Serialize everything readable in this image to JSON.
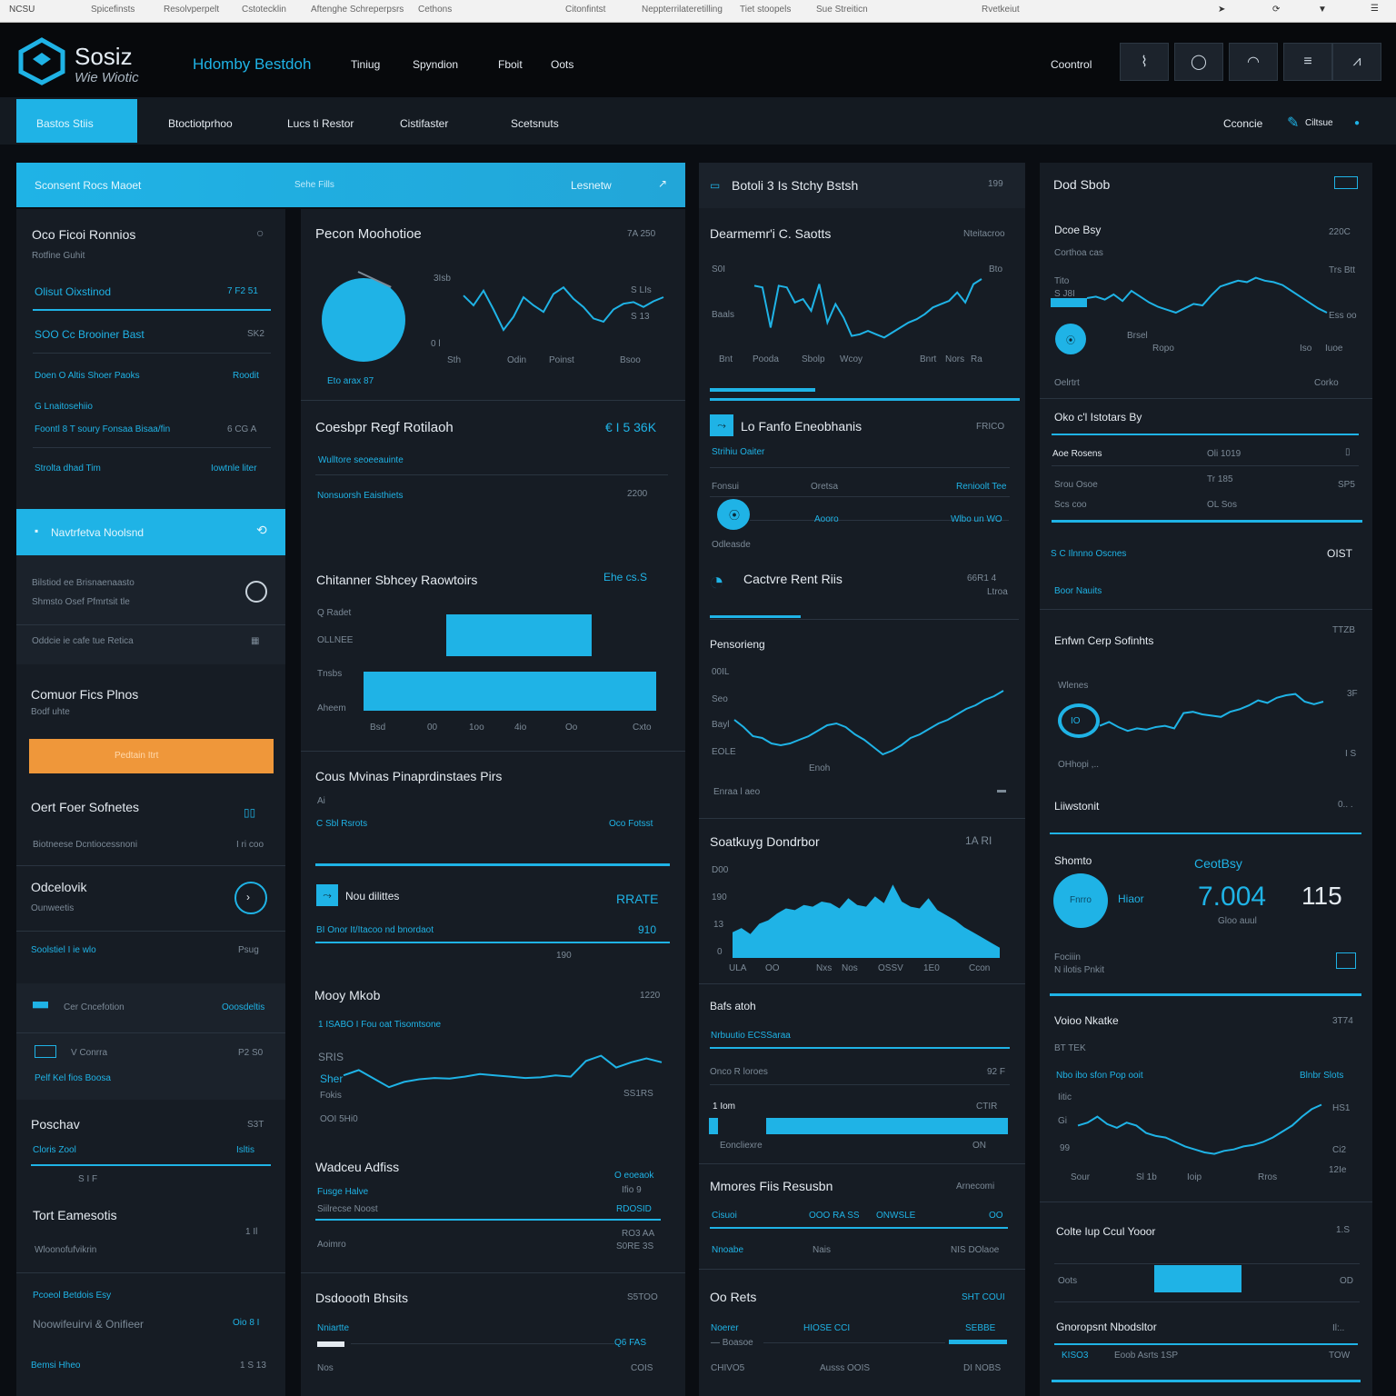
{
  "browser": {
    "items": [
      "NCSU",
      "Spicefinsts",
      "Resolvperpelt",
      "Cstotecklin",
      "Aftenghe Schreperpsrs",
      "Cethons",
      "Citonfintst",
      "Neppterrilateretilling",
      "Tiet stoopels",
      "Sue Streiticn",
      "Rvetkeiut"
    ],
    "icons": [
      "cursor-icon",
      "refresh-icon",
      "bookmark-icon",
      "menu-icon"
    ]
  },
  "header": {
    "logo_line1": "Sosiz",
    "logo_line2": "Wie Wiotic",
    "title": "Hdomby Bestdoh",
    "nav": [
      "Tiniug",
      "Spyndion",
      "Fboit",
      "Oots"
    ],
    "control_label": "Coontrol",
    "actions": [
      "chart-icon",
      "circle-icon",
      "wifi-icon",
      "list-icon",
      "pulse-icon"
    ]
  },
  "tabs": {
    "items": [
      "Bastos Stiis",
      "Btoctiotprhoo",
      "Lucs ti Restor",
      "Cistifaster",
      "Scetsnuts"
    ],
    "right_label": "Cconcie",
    "right_link": "Ciltsue"
  },
  "banner": {
    "left": "Sconsent Rocs Maoet",
    "mid": "Sehe Fills",
    "right": "Lesnetw"
  },
  "left": {
    "header_title": "Oco Ficoi Ronnios",
    "header_sub": "Rotfine Guhit",
    "rows": [
      {
        "l": "Olisut Oixstinod",
        "r": "7 F2 51"
      },
      {
        "l": "SOO Cc Brooiner Bast",
        "r": "SK2"
      },
      {
        "l": "Doen O Altis Shoer Paoks",
        "r": "Roodit"
      },
      {
        "l": "G Lnaitosehiio",
        "r": ""
      },
      {
        "l": "Foontl 8 T soury Fonsaa Bisaa/fin",
        "r": "6 CG A"
      },
      {
        "l": "Strolta dhad Tim",
        "r": "Iowtnle liter"
      }
    ],
    "band_title": "Navtrfetva Noolsnd",
    "info1": "Bilstiod ee Brisnaenaasto",
    "info2": "Shmsto Osef Pfmrtsit tle",
    "info3": "Oddcie ie cafe tue Retica",
    "promo_title": "Comuor Fics Plnos",
    "promo_sub": "Bodf uhte",
    "promo_btn": "Pedtain Itrt",
    "sched_title": "Oert Foer Sofnetes",
    "sched_row": "Biotneese Dcntiocessnoni",
    "sched_val": "I ri coo",
    "odc_title": "Odcelovik",
    "odc_sub": "Ounweetis",
    "odc_link": "Soolstiel I ie wlo",
    "odc_val": "Psug",
    "tbl_head": "Cer Cncefotion",
    "tbl_head_r": "Ooosdeltis",
    "tbl_row1": "V Conrra",
    "tbl_row1_r": "P2 S0",
    "tbl_row2": "Pelf Kel fios Boosa",
    "pos_title": "Poschav",
    "pos_val": "S3T",
    "pos_row": "Cloris Zool",
    "pos_row_r": "Isltis",
    "pos_sub": "S I F",
    "tot_title": "Tort Eamesotis",
    "tot_val": "1 Il",
    "tot_sub": "Wloonofufvikrin",
    "foot1": "Pcoeol Betdois Esy",
    "foot2": "Noowifeuirvi & Onifieer",
    "foot2_r": "Oio 8 I",
    "foot3": "Bemsi Hheo",
    "foot3_r": "1 S 13"
  },
  "col2": {
    "pie_title": "Pecon Moohotioe",
    "pie_val": "7A 250",
    "pie_caption": "Eto arax 87",
    "pie_axis": [
      "Sth",
      "Odin",
      "Poinst",
      "Bsoo"
    ],
    "pie_yt": [
      "3Isb",
      "S LIs",
      "S 13",
      "0 l"
    ],
    "chart1_y": [
      72,
      60,
      78,
      55,
      30,
      46,
      70,
      60,
      52,
      74,
      82,
      68,
      58,
      44,
      40,
      55,
      62,
      64,
      58,
      65,
      70
    ],
    "rev_title": "Coesbpr Regf Rotilaoh",
    "rev_val": "€ I 5 36K",
    "rev_row1": "Wulltore seoeeauinte",
    "rev_row2": "Nonsuorsh Eaisthiets",
    "rev_row2_r": "2200",
    "bar_title": "Chitanner Sbhcey Raowtoirs",
    "bar_val": "Ehe cs.S",
    "bar_cats": [
      "Q Radet",
      "OLLNEE",
      "Tnsbs",
      "Aheem"
    ],
    "bar_xt": [
      "Bsd",
      "00",
      "1oo",
      "4io",
      "Oo",
      "Cxto"
    ],
    "bar_vals": [
      78,
      100
    ],
    "maps_title": "Cous Mvinas Pinaprdinstaes Pirs",
    "maps_sub": "Ai",
    "maps_row": "C Sbl Rsrots",
    "maps_row_r": "Oco Fotsst",
    "nods_title": "Nou dilittes",
    "nods_val": "RRATE",
    "nods_row": "BI Onor It/Itacoo nd bnordaot",
    "nods_row_r": "910",
    "nods_x": "190",
    "mor_title": "Mooy Mkob",
    "mor_val": "1220",
    "mor_sub": "1 ISABO I Fou oat Tisomtsone",
    "mor_lbl1": "SRIS",
    "mor_lbl2": "Sher",
    "mor_lbl3": "Fokis",
    "mor_foot": "OOI 5Hi0",
    "mor_foot_r": "SS1RS",
    "chart2_y": [
      40,
      48,
      35,
      22,
      30,
      34,
      36,
      35,
      38,
      42,
      40,
      38,
      36,
      37,
      40,
      38,
      62,
      70,
      52,
      60,
      66,
      60
    ],
    "wal_title": "Wadceu Adfiss",
    "wal_r1": "O eoeaok",
    "wal_r2": "Ifio 9",
    "wal_row1": "Fusge Halve",
    "wal_row2": "Siilrecse Noost",
    "wal_row2_r": "RDOSID",
    "wal_row3": "Aoimro",
    "wal_row3_r": "RO3 AA",
    "wal_row3_r2": "S0RE 3S",
    "dst_title": "Dsdoooth Bhsits",
    "dst_val": "S5TOO",
    "dst_row": "Nniartte",
    "dst_row_r": "Q6 FAS",
    "dst_foot": "Nos",
    "dst_foot_r": "COIS"
  },
  "col3": {
    "head_title": "Botoli 3 Is Stchy Bstsh",
    "head_val": "199",
    "dem_title": "Dearmemr'i C. Saotts",
    "dem_val": "Nteitacroo",
    "dem_y": [
      "S0I",
      "Baals",
      "Bto",
      "Bnt"
    ],
    "dem_x": [
      "Pooda",
      "Sbolp",
      "Wcoy",
      "Bnrt",
      "Nors",
      "Ra"
    ],
    "chart_y": [
      80,
      78,
      30,
      80,
      78,
      60,
      64,
      50,
      82,
      36,
      58,
      42,
      20,
      22,
      26,
      22,
      18,
      24,
      30,
      36,
      40,
      46,
      54,
      58,
      62,
      72,
      60,
      82,
      88
    ],
    "enh_title": "Lo Fanfo Eneobhanis",
    "enh_val": "FRICO",
    "enh_sub": "Strihiu Oaiter",
    "enh_row": "Fonsui",
    "enh_row_m": "Oretsa",
    "enh_row_r": "Renioolt Tee",
    "enh_bar_lbl": "Aooro",
    "enh_bar_r": "Wlbo un WO",
    "enh_foot": "Odleasde",
    "cat_title": "Cactvre Rent Riis",
    "cat_val": "66R1 4",
    "cat_val2": "Ltroa",
    "pers_title": "Pensorieng",
    "pers_y": [
      "00IL",
      "Seo",
      "Bayl",
      "EOLE"
    ],
    "pers_x": "Enoh",
    "pers_foot": "Enraa l aeo",
    "chart2_y": [
      48,
      40,
      30,
      28,
      22,
      20,
      22,
      26,
      30,
      36,
      42,
      44,
      40,
      32,
      26,
      18,
      10,
      14,
      20,
      28,
      32,
      38,
      44,
      48,
      54,
      60,
      64,
      70,
      74,
      80
    ],
    "sd_title": "Soatkuyg Dondrbor",
    "sd_val": "1A RI",
    "sd_y": [
      "D00",
      "190",
      "13",
      "0"
    ],
    "sd_x": [
      "ULA",
      "OO",
      "Nxs",
      "Nos",
      "OSSV",
      "1E0",
      "Ccon"
    ],
    "area_y": [
      30,
      35,
      28,
      40,
      44,
      52,
      58,
      56,
      62,
      60,
      66,
      64,
      58,
      70,
      62,
      60,
      72,
      64,
      86,
      66,
      60,
      58,
      70,
      56,
      50,
      44,
      36,
      30,
      24,
      18,
      12
    ],
    "bs_title": "Bafs atoh",
    "bs_sub": "Nrbuutio ECSSaraa",
    "bs_row": "Onco R loroes",
    "bs_row_r": "92 F",
    "bs_bar_lbl": "1 Iom",
    "bs_bar_r": "CTIR",
    "bs_bar_foot": "Eoncliexre",
    "bs_bar_foot_r": "ON",
    "mr_title": "Mmores Fiis Resusbn",
    "mr_val": "Arnecomi",
    "mr_row1": "Cisuoi",
    "mr_row1_m": "OOO RA SS",
    "mr_row1_m2": "ONWSLE",
    "mr_row1_r": "OO",
    "mr_row2": "Nnoabe",
    "mr_row2_m": "Nais",
    "mr_row2_r": "NIS DOlaoe",
    "or_title": "Oo Rets",
    "or_val": "SHT COUI",
    "or_row1": "Noerer",
    "or_row1_m": "HIOSE CCI",
    "or_row1_r": "SEBBE",
    "or_row2": "— Boasoe",
    "or_foot": "CHIVO5",
    "or_foot_m": "Ausss OOIS",
    "or_foot_r": "DI NOBS"
  },
  "col4": {
    "head_title": "Dod Sbob",
    "c1_title": "Dcoe Bsy",
    "c1_val": "220C",
    "c1_sub": "Corthoa cas",
    "c1_y": [
      "Tito",
      "S  J8I",
      "Brsel"
    ],
    "c1_x": [
      "Ropo",
      "Iso",
      "Iuoe"
    ],
    "c1_yr": [
      "Trs Btt",
      "Ess oo"
    ],
    "c1_data": [
      50,
      52,
      48,
      55,
      46,
      60,
      52,
      44,
      38,
      34,
      30,
      36,
      42,
      40,
      54,
      66,
      70,
      74,
      72,
      78,
      74,
      72,
      68,
      60,
      52,
      44,
      36,
      30
    ],
    "cs_l": "Oelrtrt",
    "cs_r": "Corko",
    "oi_title": "Oko c'l Istotars By",
    "oi_row1": "Aoe Rosens",
    "oi_row1_m": "Oli 1019",
    "oi_row2": "Srou Osoe",
    "oi_row2_m": "Tr 185",
    "oi_row2_r": "SP5",
    "oi_row3": "Scs coo",
    "oi_row3_m": "OL Sos",
    "oi_link": "S C Ilnnno Oscnes",
    "oi_link_r": "OIST",
    "oi_link2": "Boor Nauits",
    "ec_title": "Enfwn Cerp Sofinhts",
    "ec_val": "TTZB",
    "ec_lbl": "Wlenes",
    "ec_lbl2": "OHhopi ,..",
    "ec_r1": "3F",
    "ec_r2": "I S",
    "ec_data": [
      22,
      28,
      20,
      14,
      18,
      16,
      20,
      22,
      18,
      42,
      44,
      40,
      38,
      36,
      44,
      48,
      54,
      62,
      58,
      66,
      70,
      72,
      60,
      56,
      60
    ],
    "lin_title": "Liiwstonit",
    "lin_r": "0.. .",
    "sc_title": "Shomto",
    "sc_circle": "Fnrro",
    "sc_lbl": "Hiaor",
    "sc_big_lbl": "CeotBsy",
    "sc_big": "7.004",
    "sc_big2": "115",
    "sc_sub": "Gloo auul",
    "sc_foot1": "Fociiin",
    "sc_foot2": "N ilotis Pnkit",
    "vn_title": "Voioo Nkatke",
    "vn_val": "3T74",
    "vn_sub": "BT TEK",
    "vn_lbl": "Nbo ibo sfon Pop ooit",
    "vn_lbl_r": "Blnbr Slots",
    "vn_y": [
      "Iitic",
      "Gi",
      "99"
    ],
    "vn_yr": [
      "HS1",
      "Ci2",
      "12Ie"
    ],
    "vn_x": [
      "Sour",
      "Sl 1b",
      "Ioip",
      "Rros"
    ],
    "vn_data": [
      58,
      62,
      70,
      60,
      55,
      62,
      58,
      48,
      44,
      42,
      36,
      30,
      26,
      22,
      20,
      24,
      26,
      30,
      32,
      36,
      42,
      50,
      58,
      70,
      80,
      86
    ],
    "cb_title": "Colte Iup Ccul Yooor",
    "cb_val": "1.S",
    "cb_bar_lbl": "Oots",
    "cb_bar_r": "OD",
    "gm_title": "Gnoropsnt Nbodsltor",
    "gm_val": "Il:..",
    "gm_row": "KISO3",
    "gm_row_m": "Eoob Asrts 1SP",
    "gm_row_r": "TOW"
  },
  "colors": {
    "accent": "#1fb3e6",
    "orange": "#ef973a",
    "bg": "#0a0d12",
    "panel": "#161c24"
  }
}
